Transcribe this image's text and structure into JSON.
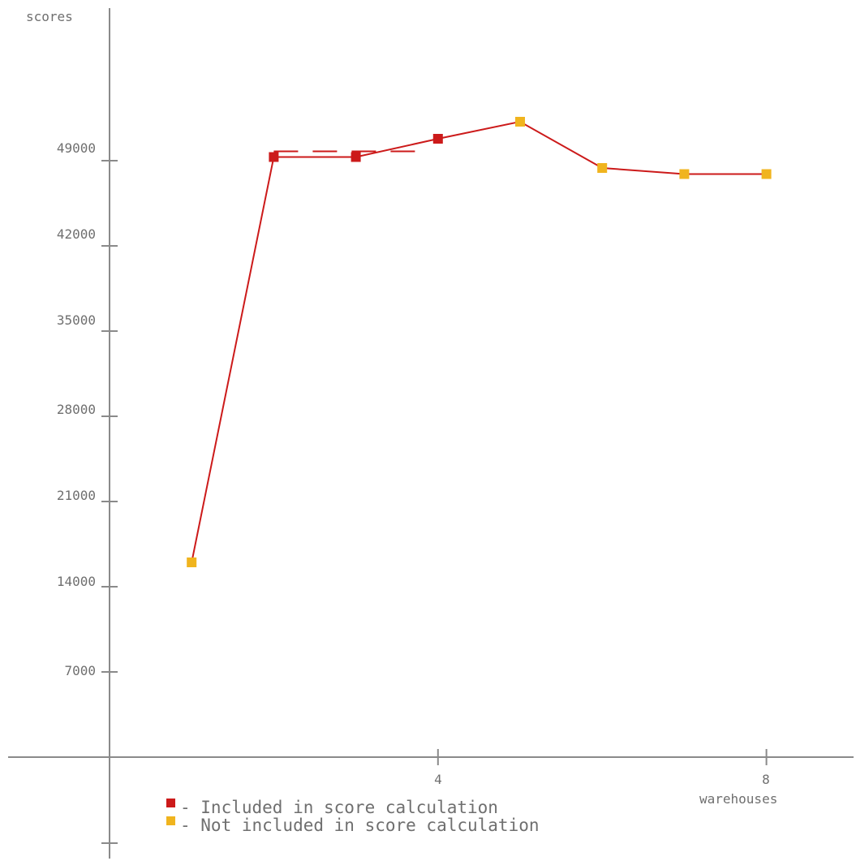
{
  "chart_data": {
    "type": "line",
    "xlabel": "warehouses",
    "ylabel": "scores",
    "x_ticks": [
      "4",
      "8"
    ],
    "y_ticks": [
      "49000",
      "42000",
      "35000",
      "28000",
      "21000",
      "14000",
      "7000"
    ],
    "xlim": [
      0,
      9
    ],
    "ylim": [
      0,
      58000
    ],
    "series": [
      {
        "points": [
          {
            "x": 1,
            "y": 16000,
            "included": false
          },
          {
            "x": 2,
            "y": 49300,
            "included": true
          },
          {
            "x": 3,
            "y": 49300,
            "included": true
          },
          {
            "x": 4,
            "y": 50800,
            "included": true
          },
          {
            "x": 5,
            "y": 52200,
            "included": false
          },
          {
            "x": 6,
            "y": 48400,
            "included": false
          },
          {
            "x": 7,
            "y": 47900,
            "included": false
          },
          {
            "x": 8,
            "y": 47900,
            "included": false
          }
        ]
      }
    ],
    "score_line": {
      "x_start": 2,
      "x_end": 3.85,
      "y_start": 49700,
      "y_end": 49700
    },
    "legend": [
      {
        "label": "- Included in score calculation",
        "color": "#cc1a1a"
      },
      {
        "label": "- Not included in score calculation",
        "color": "#f0b41e"
      }
    ],
    "colors": {
      "included": "#cc1a1a",
      "not_included": "#f0b41e",
      "line": "#cc1a1a",
      "axis": "#8a8a8a",
      "text": "#6f6f6f"
    }
  }
}
